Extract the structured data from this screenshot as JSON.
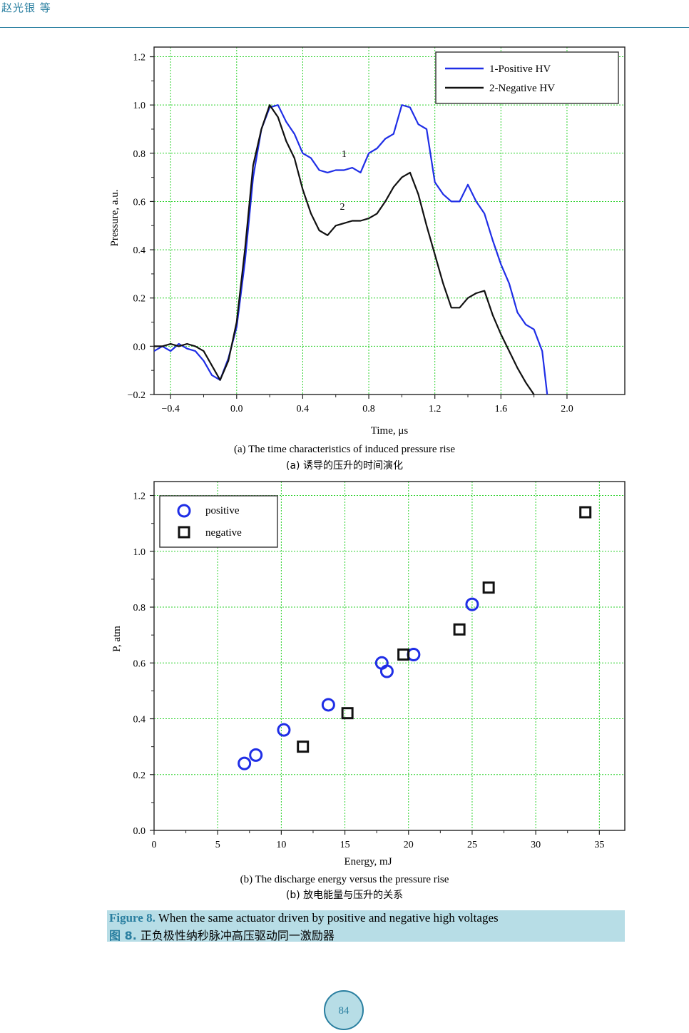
{
  "header": {
    "authors": "赵光银 等"
  },
  "chart_data": [
    {
      "type": "line",
      "xlabel": "Time, μs",
      "ylabel": "Pressure, a.u.",
      "xlim": [
        -0.5,
        2.35
      ],
      "ylim": [
        -0.2,
        1.24
      ],
      "x_ticks": [
        "−0.4",
        "0.0",
        "0.4",
        "0.8",
        "1.2",
        "1.6",
        "2.0"
      ],
      "x_tick_values": [
        -0.4,
        0.0,
        0.4,
        0.8,
        1.2,
        1.6,
        2.0
      ],
      "y_ticks": [
        "−0.2",
        "0.0",
        "0.2",
        "0.4",
        "0.6",
        "0.8",
        "1.0",
        "1.2"
      ],
      "y_tick_values": [
        -0.2,
        0.0,
        0.2,
        0.4,
        0.6,
        0.8,
        1.0,
        1.2
      ],
      "grid": true,
      "legend_position": "top-right",
      "series": [
        {
          "name": "1-Positive HV",
          "color": "#1f2ee6",
          "x": [
            -0.5,
            -0.45,
            -0.4,
            -0.35,
            -0.3,
            -0.25,
            -0.2,
            -0.15,
            -0.1,
            -0.05,
            0.0,
            0.05,
            0.1,
            0.15,
            0.2,
            0.25,
            0.3,
            0.35,
            0.4,
            0.45,
            0.5,
            0.55,
            0.6,
            0.65,
            0.7,
            0.75,
            0.8,
            0.85,
            0.9,
            0.95,
            1.0,
            1.05,
            1.1,
            1.15,
            1.2,
            1.25,
            1.3,
            1.35,
            1.4,
            1.45,
            1.5,
            1.55,
            1.6,
            1.65,
            1.7,
            1.75,
            1.8,
            1.85,
            1.88
          ],
          "y": [
            -0.02,
            0.0,
            -0.02,
            0.01,
            -0.01,
            -0.02,
            -0.06,
            -0.12,
            -0.14,
            -0.05,
            0.08,
            0.35,
            0.7,
            0.9,
            0.99,
            1.0,
            0.93,
            0.88,
            0.8,
            0.78,
            0.73,
            0.72,
            0.73,
            0.73,
            0.74,
            0.72,
            0.8,
            0.82,
            0.86,
            0.88,
            1.0,
            0.99,
            0.92,
            0.9,
            0.68,
            0.63,
            0.6,
            0.6,
            0.67,
            0.6,
            0.55,
            0.44,
            0.34,
            0.26,
            0.14,
            0.09,
            0.07,
            -0.02,
            -0.2
          ]
        },
        {
          "name": "2-Negative HV",
          "color": "#111111",
          "x": [
            -0.5,
            -0.45,
            -0.4,
            -0.35,
            -0.3,
            -0.25,
            -0.2,
            -0.15,
            -0.1,
            -0.05,
            0.0,
            0.05,
            0.1,
            0.15,
            0.2,
            0.25,
            0.3,
            0.35,
            0.4,
            0.45,
            0.5,
            0.55,
            0.6,
            0.65,
            0.7,
            0.75,
            0.8,
            0.85,
            0.9,
            0.95,
            1.0,
            1.05,
            1.1,
            1.15,
            1.2,
            1.25,
            1.3,
            1.35,
            1.4,
            1.45,
            1.5,
            1.55,
            1.6,
            1.65,
            1.7,
            1.75,
            1.8
          ],
          "y": [
            0.0,
            0.0,
            0.01,
            0.0,
            0.01,
            0.0,
            -0.02,
            -0.08,
            -0.14,
            -0.06,
            0.1,
            0.4,
            0.75,
            0.9,
            1.0,
            0.95,
            0.85,
            0.78,
            0.65,
            0.55,
            0.48,
            0.46,
            0.5,
            0.51,
            0.52,
            0.52,
            0.53,
            0.55,
            0.6,
            0.66,
            0.7,
            0.72,
            0.63,
            0.5,
            0.38,
            0.26,
            0.16,
            0.16,
            0.2,
            0.22,
            0.23,
            0.13,
            0.05,
            -0.02,
            -0.09,
            -0.15,
            -0.2
          ]
        }
      ],
      "annotations": [
        "1",
        "2"
      ],
      "caption_en": "(a) The time characteristics of induced pressure rise",
      "caption_cn": "(a)  诱导的压升的时间演化"
    },
    {
      "type": "scatter",
      "xlabel": "Energy, mJ",
      "ylabel": "P, atm",
      "xlim": [
        0,
        37
      ],
      "ylim": [
        0,
        1.25
      ],
      "x_ticks": [
        "0",
        "5",
        "10",
        "15",
        "20",
        "25",
        "30",
        "35"
      ],
      "x_tick_values": [
        0,
        5,
        10,
        15,
        20,
        25,
        30,
        35
      ],
      "y_ticks": [
        "0.0",
        "0.2",
        "0.4",
        "0.6",
        "0.8",
        "1.0",
        "1.2"
      ],
      "y_tick_values": [
        0.0,
        0.2,
        0.4,
        0.6,
        0.8,
        1.0,
        1.2
      ],
      "grid": true,
      "legend_position": "top-left",
      "series": [
        {
          "name": "positive",
          "color": "#1f2ee6",
          "marker": "circle",
          "x": [
            7.1,
            8.0,
            10.2,
            13.7,
            17.9,
            18.3,
            20.4,
            25.0
          ],
          "y": [
            0.24,
            0.27,
            0.36,
            0.45,
            0.6,
            0.57,
            0.63,
            0.81
          ]
        },
        {
          "name": "negative",
          "color": "#111111",
          "marker": "square",
          "x": [
            11.7,
            15.2,
            19.6,
            24.0,
            26.3,
            33.9
          ],
          "y": [
            0.3,
            0.42,
            0.63,
            0.72,
            0.87,
            1.14
          ]
        }
      ],
      "caption_en": "(b) The discharge energy versus the pressure rise",
      "caption_cn": "(b)  放电能量与压升的关系"
    }
  ],
  "figure": {
    "label_en": "Figure 8.",
    "title_en": "When the same actuator driven by positive and negative high voltages",
    "label_cn": "图 8.",
    "title_cn": "正负极性纳秒脉冲高压驱动同一激励器"
  },
  "page": {
    "number": "84"
  }
}
